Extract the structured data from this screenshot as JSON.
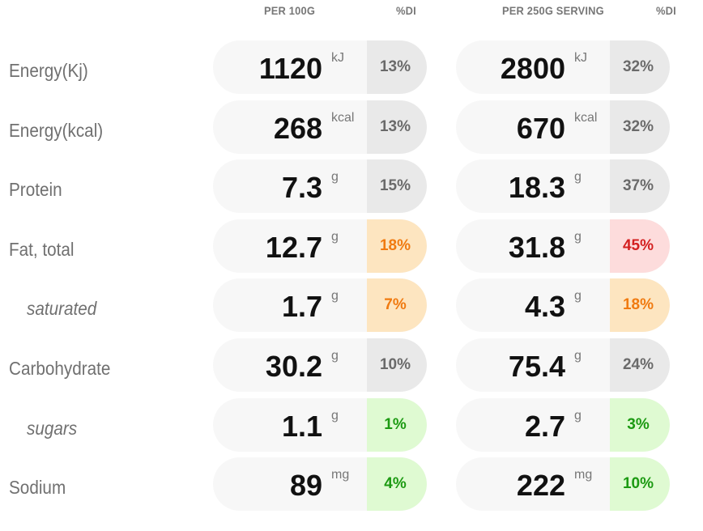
{
  "headers": {
    "per_100g": "PER 100G",
    "di_1": "%DI",
    "per_serving": "PER 250G SERVING",
    "di_2": "%DI"
  },
  "rows": [
    {
      "name": "Energy(Kj)",
      "sub": false,
      "per100": {
        "value": "1120",
        "unit": "kJ",
        "di": "13%",
        "level": "grey"
      },
      "serving": {
        "value": "2800",
        "unit": "kJ",
        "di": "32%",
        "level": "grey"
      }
    },
    {
      "name": "Energy(kcal)",
      "sub": false,
      "per100": {
        "value": "268",
        "unit": "kcal",
        "di": "13%",
        "level": "grey"
      },
      "serving": {
        "value": "670",
        "unit": "kcal",
        "di": "32%",
        "level": "grey"
      }
    },
    {
      "name": "Protein",
      "sub": false,
      "per100": {
        "value": "7.3",
        "unit": "g",
        "di": "15%",
        "level": "grey"
      },
      "serving": {
        "value": "18.3",
        "unit": "g",
        "di": "37%",
        "level": "grey"
      }
    },
    {
      "name": "Fat, total",
      "sub": false,
      "per100": {
        "value": "12.7",
        "unit": "g",
        "di": "18%",
        "level": "orange"
      },
      "serving": {
        "value": "31.8",
        "unit": "g",
        "di": "45%",
        "level": "red"
      }
    },
    {
      "name": "saturated",
      "sub": true,
      "per100": {
        "value": "1.7",
        "unit": "g",
        "di": "7%",
        "level": "orange"
      },
      "serving": {
        "value": "4.3",
        "unit": "g",
        "di": "18%",
        "level": "orange"
      }
    },
    {
      "name": "Carbohydrate",
      "sub": false,
      "per100": {
        "value": "30.2",
        "unit": "g",
        "di": "10%",
        "level": "grey"
      },
      "serving": {
        "value": "75.4",
        "unit": "g",
        "di": "24%",
        "level": "grey"
      }
    },
    {
      "name": "sugars",
      "sub": true,
      "per100": {
        "value": "1.1",
        "unit": "g",
        "di": "1%",
        "level": "green"
      },
      "serving": {
        "value": "2.7",
        "unit": "g",
        "di": "3%",
        "level": "green"
      }
    },
    {
      "name": "Sodium",
      "sub": false,
      "per100": {
        "value": "89",
        "unit": "mg",
        "di": "4%",
        "level": "green"
      },
      "serving": {
        "value": "222",
        "unit": "mg",
        "di": "10%",
        "level": "green"
      }
    }
  ],
  "colors": {
    "grey": "#e9e9e9",
    "orange": "#fde5c0",
    "red": "#fddcdc",
    "green": "#dffad2"
  }
}
